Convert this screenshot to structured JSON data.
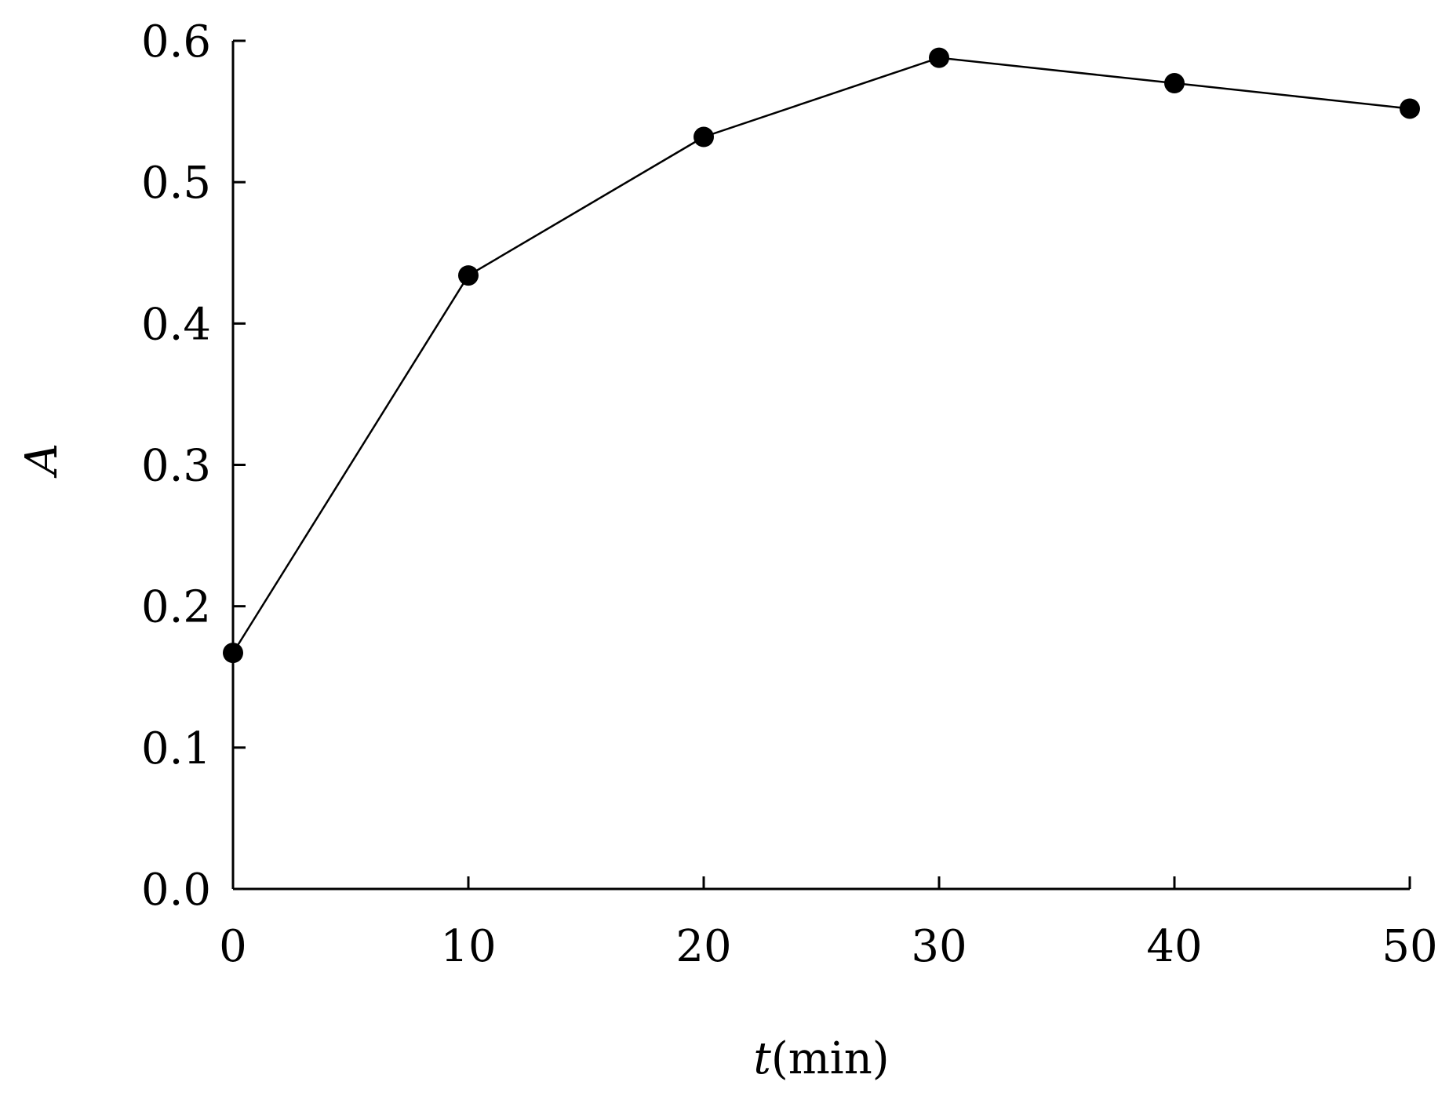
{
  "chart_data": {
    "type": "line",
    "title": "",
    "xlabel_var": "t",
    "xlabel_unit": "(min)",
    "ylabel": "A",
    "xlim": [
      0,
      50
    ],
    "ylim": [
      0,
      0.6
    ],
    "xticks": [
      0,
      10,
      20,
      30,
      40,
      50
    ],
    "xtick_labels": [
      "0",
      "10",
      "20",
      "30",
      "40",
      "50"
    ],
    "yticks": [
      0.0,
      0.1,
      0.2,
      0.3,
      0.4,
      0.5,
      0.6
    ],
    "ytick_labels": [
      "0.0",
      "0.1",
      "0.2",
      "0.3",
      "0.4",
      "0.5",
      "0.6"
    ],
    "grid": false,
    "legend": "none",
    "series": [
      {
        "x": [
          0,
          10,
          20,
          30,
          40,
          50
        ],
        "values": [
          0.167,
          0.434,
          0.532,
          0.588,
          0.57,
          0.552
        ],
        "color": "#000000",
        "marker": "filled-circle"
      }
    ]
  }
}
